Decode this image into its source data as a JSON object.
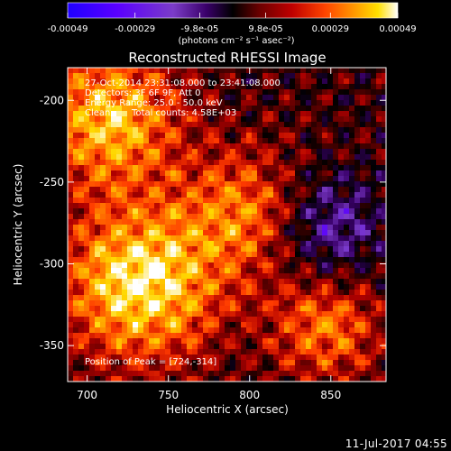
{
  "chart_data": {
    "type": "heatmap",
    "title": "Reconstructed RHESSI Image",
    "xlabel": "Heliocentric X (arcsec)",
    "ylabel": "Heliocentric Y (arcsec)",
    "xlim": [
      688,
      884
    ],
    "ylim": [
      -372,
      -180
    ],
    "x_ticks": [
      700,
      750,
      800,
      850
    ],
    "y_ticks": [
      -200,
      -250,
      -300,
      -350
    ],
    "colorbar": {
      "min": -0.00049,
      "max": 0.00049,
      "ticks": [
        "-0.00049",
        "-0.00029",
        "-9.8e-05",
        "9.8e-05",
        "0.00029",
        "0.00049"
      ],
      "tick_values": [
        -0.00049,
        -0.00029,
        -9.8e-05,
        9.8e-05,
        0.00029,
        0.00049
      ],
      "unit_label": "(photons cm⁻² s⁻¹ asec⁻²)",
      "colormap": [
        "#1f00ff",
        "#5a00ff",
        "#7b3cc8",
        "#3a006a",
        "#000000",
        "#5a0000",
        "#b00000",
        "#ff3b00",
        "#ff8c00",
        "#ffd800",
        "#ffffff"
      ]
    },
    "peak": [
      724,
      -314
    ],
    "annotations": {
      "time_range": "27-Oct-2014 23:31:08.000 to 23:41:08.000",
      "detectors": "Detectors: 3F 6F 9F, Att 0",
      "energy": "Energy Range: 25.0 - 50.0 keV",
      "method": "Clean",
      "counts": "Total counts: 4.58E+03",
      "peak_text": "Position of Peak = [724,-314]"
    }
  },
  "footer": {
    "date": "11-Jul-2017 04:55"
  }
}
